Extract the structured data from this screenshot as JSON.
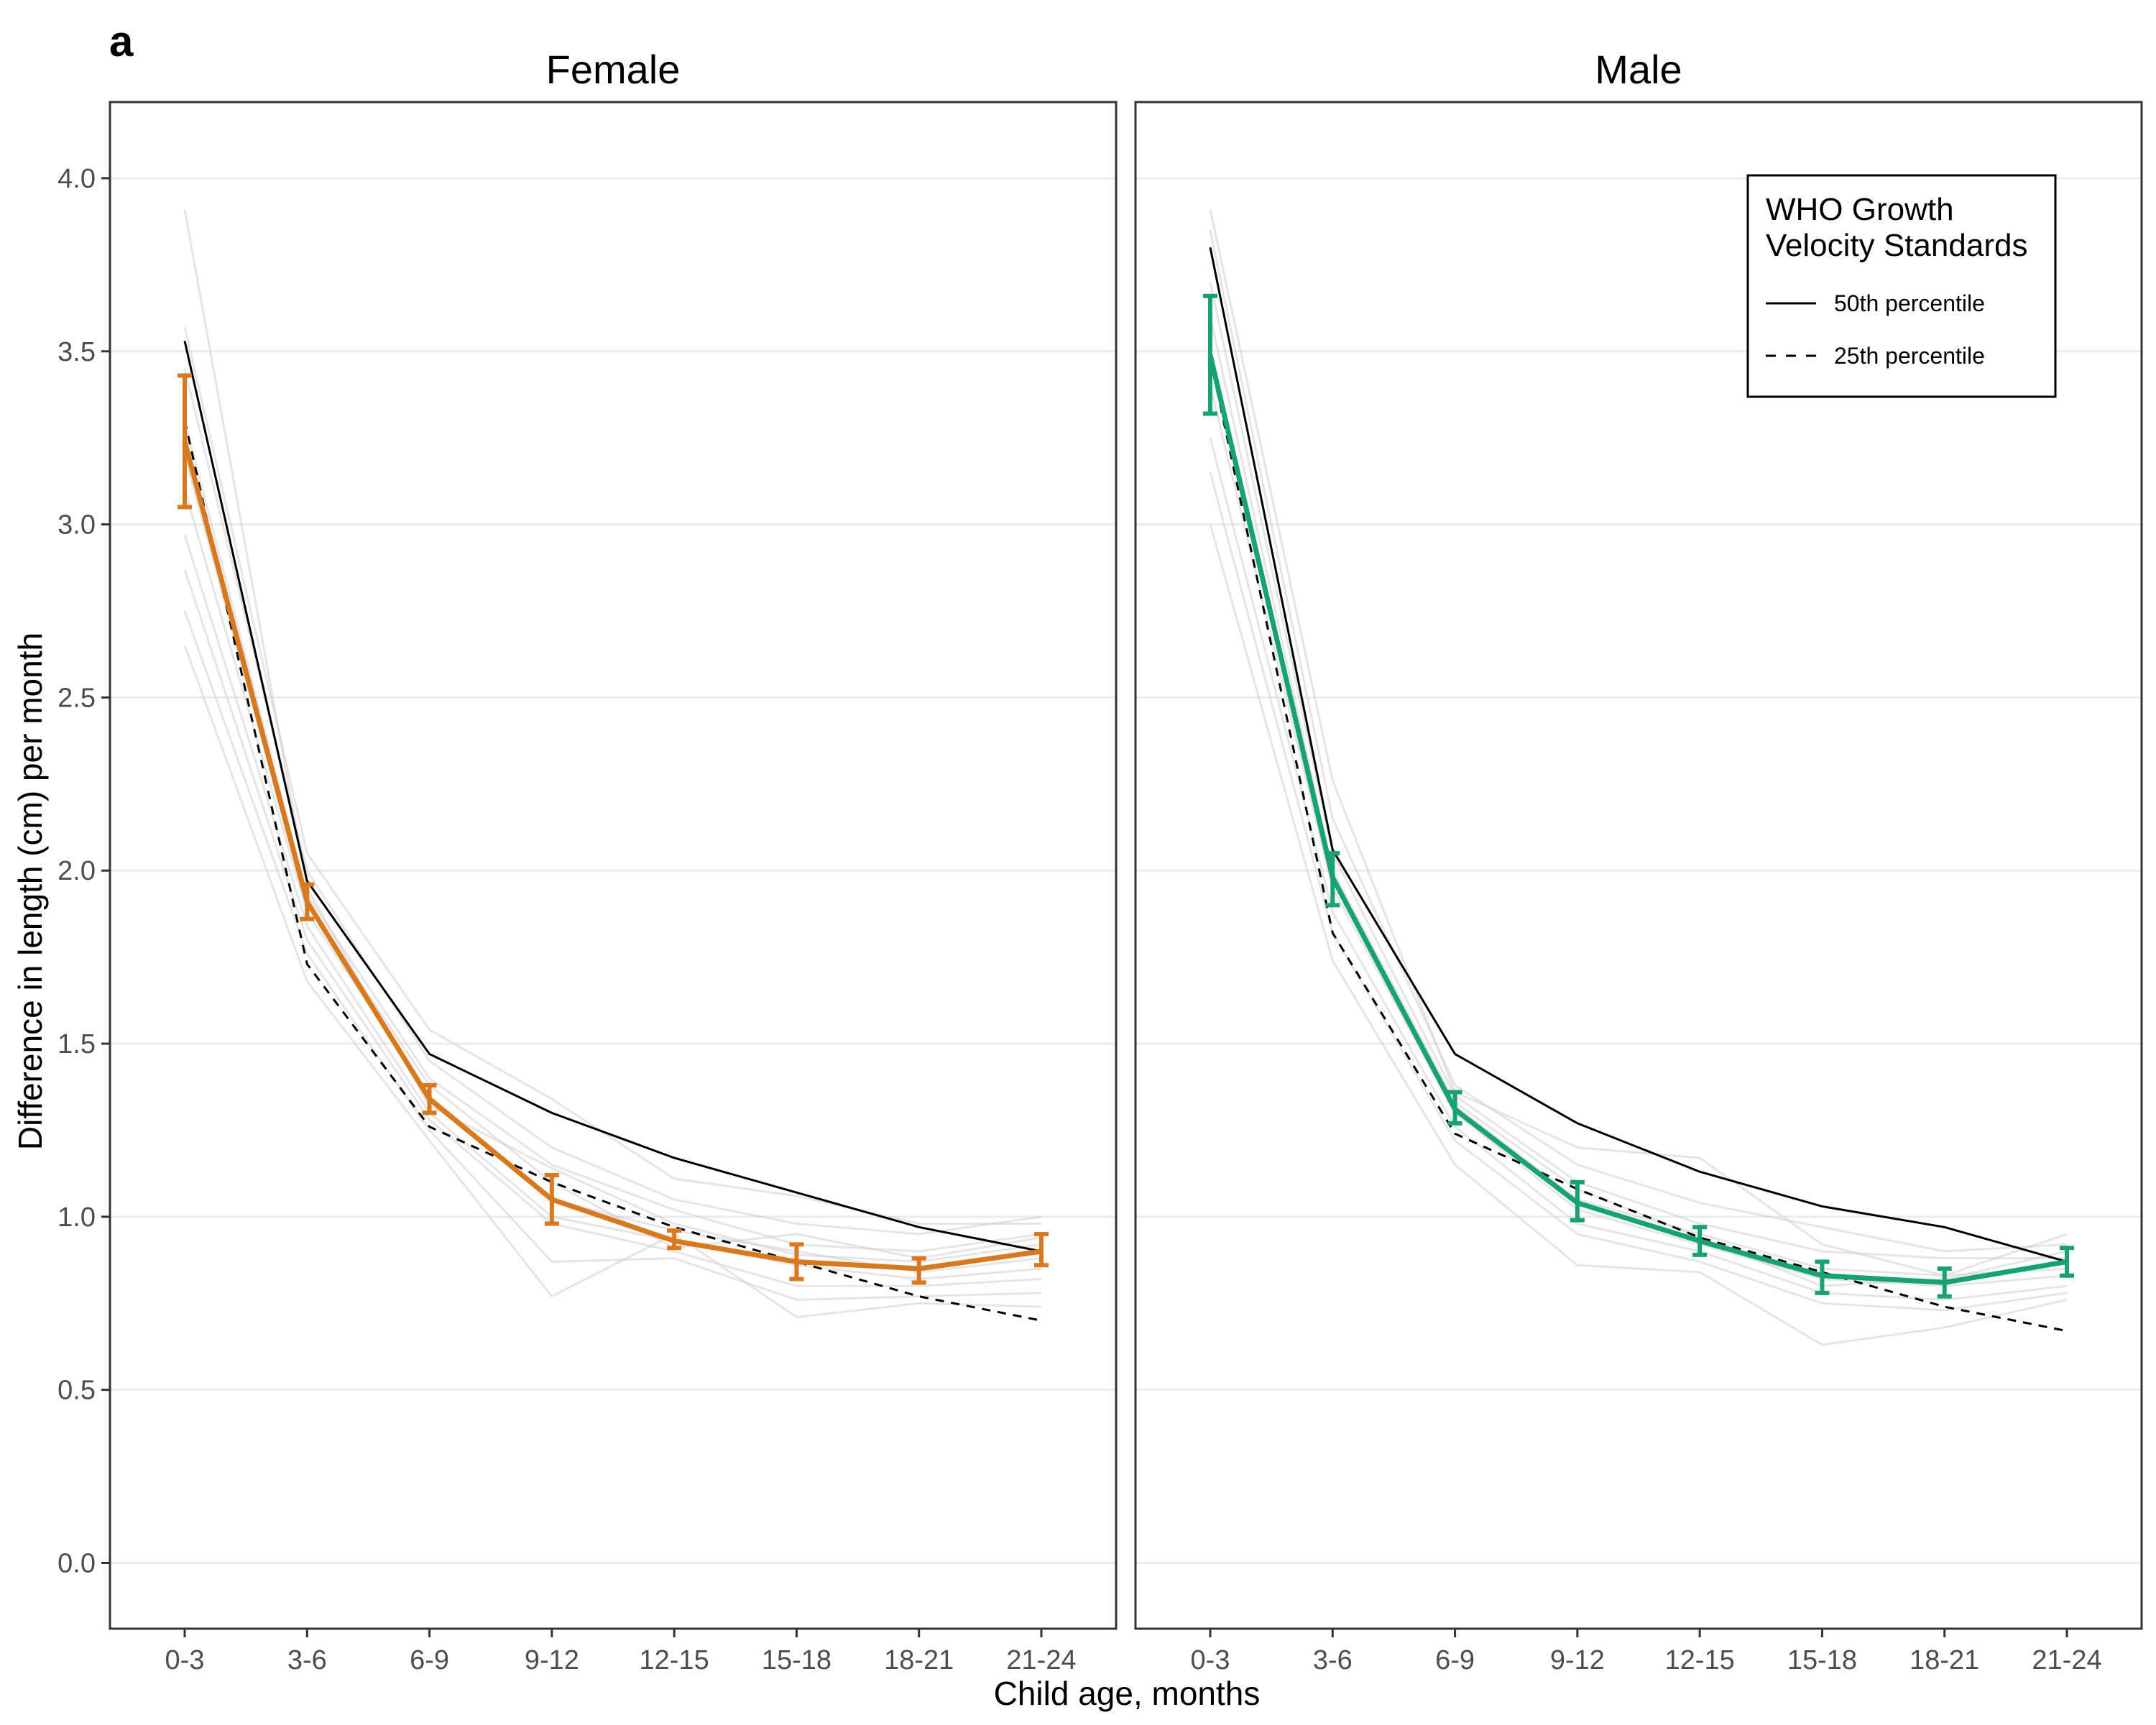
{
  "panel_tag": "a",
  "chart_data": {
    "type": "line",
    "xlabel": "Child age, months",
    "ylabel": "Difference in length (cm) per month",
    "categories": [
      "0-3",
      "3-6",
      "6-9",
      "9-12",
      "12-15",
      "15-18",
      "18-21",
      "21-24"
    ],
    "ylim": [
      -0.19,
      4.22
    ],
    "yticks": [
      0.0,
      0.5,
      1.0,
      1.5,
      2.0,
      2.5,
      3.0,
      3.5,
      4.0
    ],
    "ytick_labels": [
      "0.0",
      "0.5",
      "1.0",
      "1.5",
      "2.0",
      "2.5",
      "3.0",
      "3.5",
      "4.0"
    ],
    "grid": "horizontal major",
    "legend": {
      "title": [
        "WHO Growth",
        "Velocity Standards"
      ],
      "placement": "top-right of Male panel",
      "entries": [
        {
          "label": "50th percentile",
          "style": "solid"
        },
        {
          "label": "25th percentile",
          "style": "dashed"
        }
      ]
    },
    "colors": {
      "Female": "#d8791f",
      "Male": "#16a371",
      "background_series": "#d0d0d0",
      "reference": "#000000"
    },
    "panels": [
      {
        "name": "Female",
        "mean": [
          3.24,
          1.91,
          1.34,
          1.05,
          0.93,
          0.87,
          0.85,
          0.9
        ],
        "ci_low": [
          3.05,
          1.86,
          1.3,
          0.98,
          0.91,
          0.82,
          0.81,
          0.86
        ],
        "ci_high": [
          3.43,
          1.96,
          1.38,
          1.12,
          0.96,
          0.92,
          0.88,
          0.95
        ],
        "who_p50": [
          3.53,
          1.97,
          1.47,
          1.3,
          1.17,
          1.07,
          0.97,
          0.9
        ],
        "who_p25": [
          3.3,
          1.73,
          1.26,
          1.1,
          0.97,
          0.87,
          0.77,
          0.7
        ],
        "background_series": [
          [
            3.91,
            1.95,
            1.32,
            1.14,
            0.98,
            0.89,
            0.87,
            0.92
          ],
          [
            3.57,
            2.05,
            1.54,
            1.34,
            1.11,
            1.06,
            0.98,
            0.98
          ],
          [
            3.45,
            2.0,
            1.45,
            1.2,
            1.05,
            0.98,
            0.95,
            1.0
          ],
          [
            3.3,
            1.93,
            1.4,
            1.15,
            1.02,
            0.92,
            0.9,
            0.95
          ],
          [
            3.1,
            1.88,
            1.35,
            1.05,
            0.96,
            0.9,
            0.84,
            0.88
          ],
          [
            2.97,
            1.84,
            1.3,
            1.0,
            0.93,
            0.86,
            0.82,
            0.85
          ],
          [
            2.87,
            1.8,
            1.28,
            0.98,
            0.9,
            0.8,
            0.8,
            0.82
          ],
          [
            2.75,
            1.76,
            1.25,
            0.87,
            0.88,
            0.76,
            0.77,
            0.78
          ],
          [
            2.65,
            1.68,
            1.22,
            0.77,
            0.95,
            0.71,
            0.75,
            0.74
          ],
          [
            3.2,
            1.9,
            1.38,
            1.1,
            0.91,
            0.95,
            0.88,
            0.94
          ]
        ]
      },
      {
        "name": "Male",
        "mean": [
          3.49,
          1.98,
          1.31,
          1.04,
          0.93,
          0.83,
          0.81,
          0.87
        ],
        "ci_low": [
          3.32,
          1.9,
          1.27,
          0.99,
          0.89,
          0.78,
          0.77,
          0.83
        ],
        "ci_high": [
          3.66,
          2.05,
          1.36,
          1.1,
          0.97,
          0.87,
          0.85,
          0.91
        ],
        "who_p50": [
          3.8,
          2.06,
          1.47,
          1.27,
          1.13,
          1.03,
          0.97,
          0.87
        ],
        "who_p25": [
          3.48,
          1.82,
          1.24,
          1.08,
          0.94,
          0.84,
          0.74,
          0.67
        ],
        "background_series": [
          [
            3.91,
            2.26,
            1.36,
            1.2,
            1.17,
            0.92,
            0.83,
            0.95
          ],
          [
            3.85,
            2.15,
            1.38,
            1.15,
            1.04,
            0.97,
            0.9,
            0.92
          ],
          [
            3.7,
            2.05,
            1.35,
            1.1,
            0.98,
            0.9,
            0.88,
            0.88
          ],
          [
            3.5,
            1.98,
            1.32,
            1.05,
            0.95,
            0.85,
            0.83,
            0.85
          ],
          [
            3.4,
            1.95,
            1.3,
            1.02,
            0.92,
            0.82,
            0.8,
            0.83
          ],
          [
            3.25,
            1.88,
            1.26,
            0.98,
            0.9,
            0.78,
            0.76,
            0.8
          ],
          [
            3.15,
            1.82,
            1.22,
            0.95,
            0.87,
            0.75,
            0.73,
            0.78
          ],
          [
            3.0,
            1.74,
            1.15,
            0.86,
            0.84,
            0.63,
            0.68,
            0.76
          ],
          [
            3.6,
            2.0,
            1.33,
            1.08,
            0.94,
            0.8,
            0.82,
            0.9
          ]
        ]
      }
    ]
  }
}
